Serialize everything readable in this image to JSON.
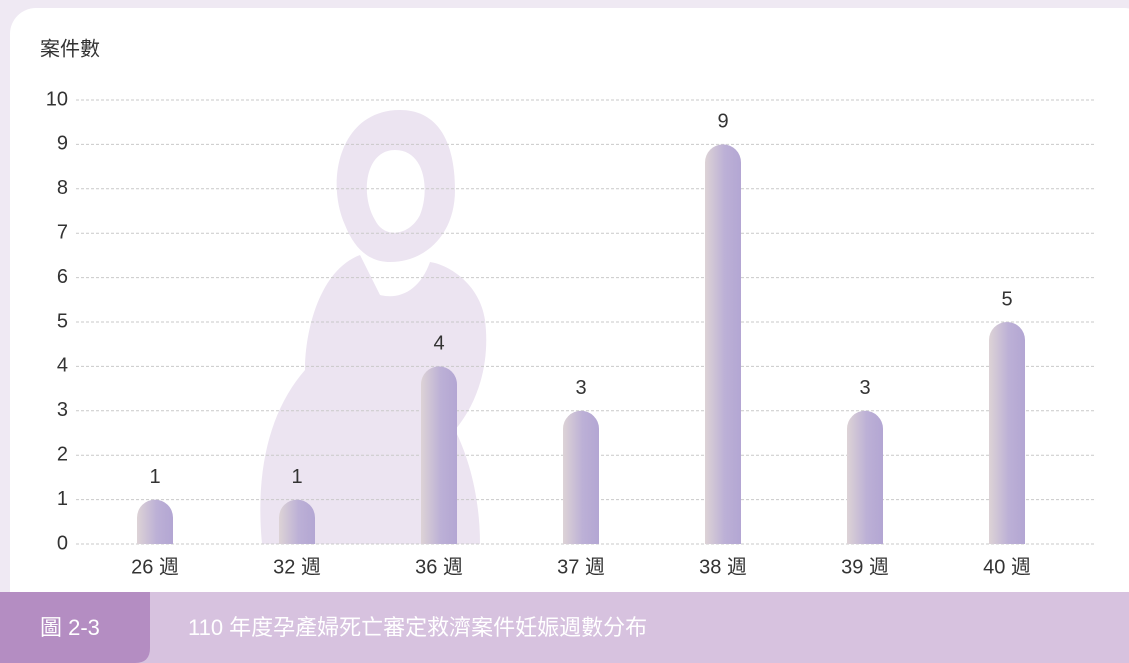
{
  "chart_data": {
    "type": "bar",
    "y_label": "案件數",
    "figure_label": "圖 2-3",
    "title": "110 年度孕產婦死亡審定救濟案件妊娠週數分布",
    "categories": [
      "26 週",
      "32 週",
      "36 週",
      "37 週",
      "38 週",
      "39 週",
      "40 週"
    ],
    "values": [
      1,
      1,
      4,
      3,
      9,
      3,
      5
    ],
    "ylim": [
      0,
      10
    ],
    "yticks": [
      0,
      1,
      2,
      3,
      4,
      5,
      6,
      7,
      8,
      9,
      10
    ],
    "grid": true,
    "color": "#b3a6d3"
  }
}
